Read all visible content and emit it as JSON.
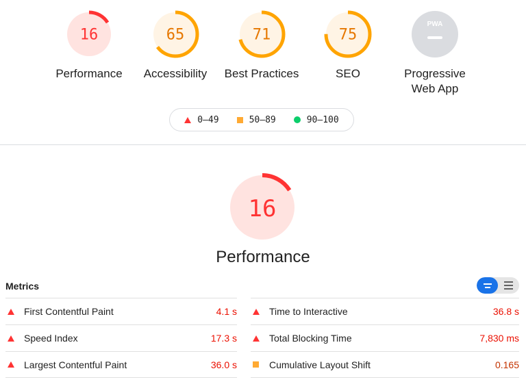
{
  "categories": [
    {
      "label": "Performance",
      "score": 16,
      "color": "#ff3333",
      "bg": "#ffe3e0",
      "num_color": "#ff3333"
    },
    {
      "label": "Accessibility",
      "score": 65,
      "color": "#ffa400",
      "bg": "#fff4e5",
      "num_color": "#e67700"
    },
    {
      "label": "Best Practices",
      "score": 71,
      "color": "#ffa400",
      "bg": "#fff4e5",
      "num_color": "#e67700"
    },
    {
      "label": "SEO",
      "score": 75,
      "color": "#ffa400",
      "bg": "#fff4e5",
      "num_color": "#e67700"
    },
    {
      "label_line1": "Progressive",
      "label_line2": "Web App",
      "badge": "PWA",
      "color": "#9e9e9e",
      "bg": "#dadce0"
    }
  ],
  "legend": {
    "fail": "0–49",
    "average": "50–89",
    "pass": "90–100",
    "colors": {
      "fail": "#ff3333",
      "average": "#ffaa33",
      "pass": "#0cce6b"
    }
  },
  "main": {
    "score": 16,
    "title": "Performance",
    "color": "#ff3333",
    "bg": "#ffe3e0"
  },
  "metrics": {
    "heading": "Metrics",
    "left": [
      {
        "name": "First Contentful Paint",
        "value": "4.1 s",
        "status": "fail"
      },
      {
        "name": "Speed Index",
        "value": "17.3 s",
        "status": "fail"
      },
      {
        "name": "Largest Contentful Paint",
        "value": "36.0 s",
        "status": "fail"
      }
    ],
    "right": [
      {
        "name": "Time to Interactive",
        "value": "36.8 s",
        "status": "fail"
      },
      {
        "name": "Total Blocking Time",
        "value": "7,830 ms",
        "status": "fail"
      },
      {
        "name": "Cumulative Layout Shift",
        "value": "0.165",
        "status": "average"
      }
    ]
  }
}
